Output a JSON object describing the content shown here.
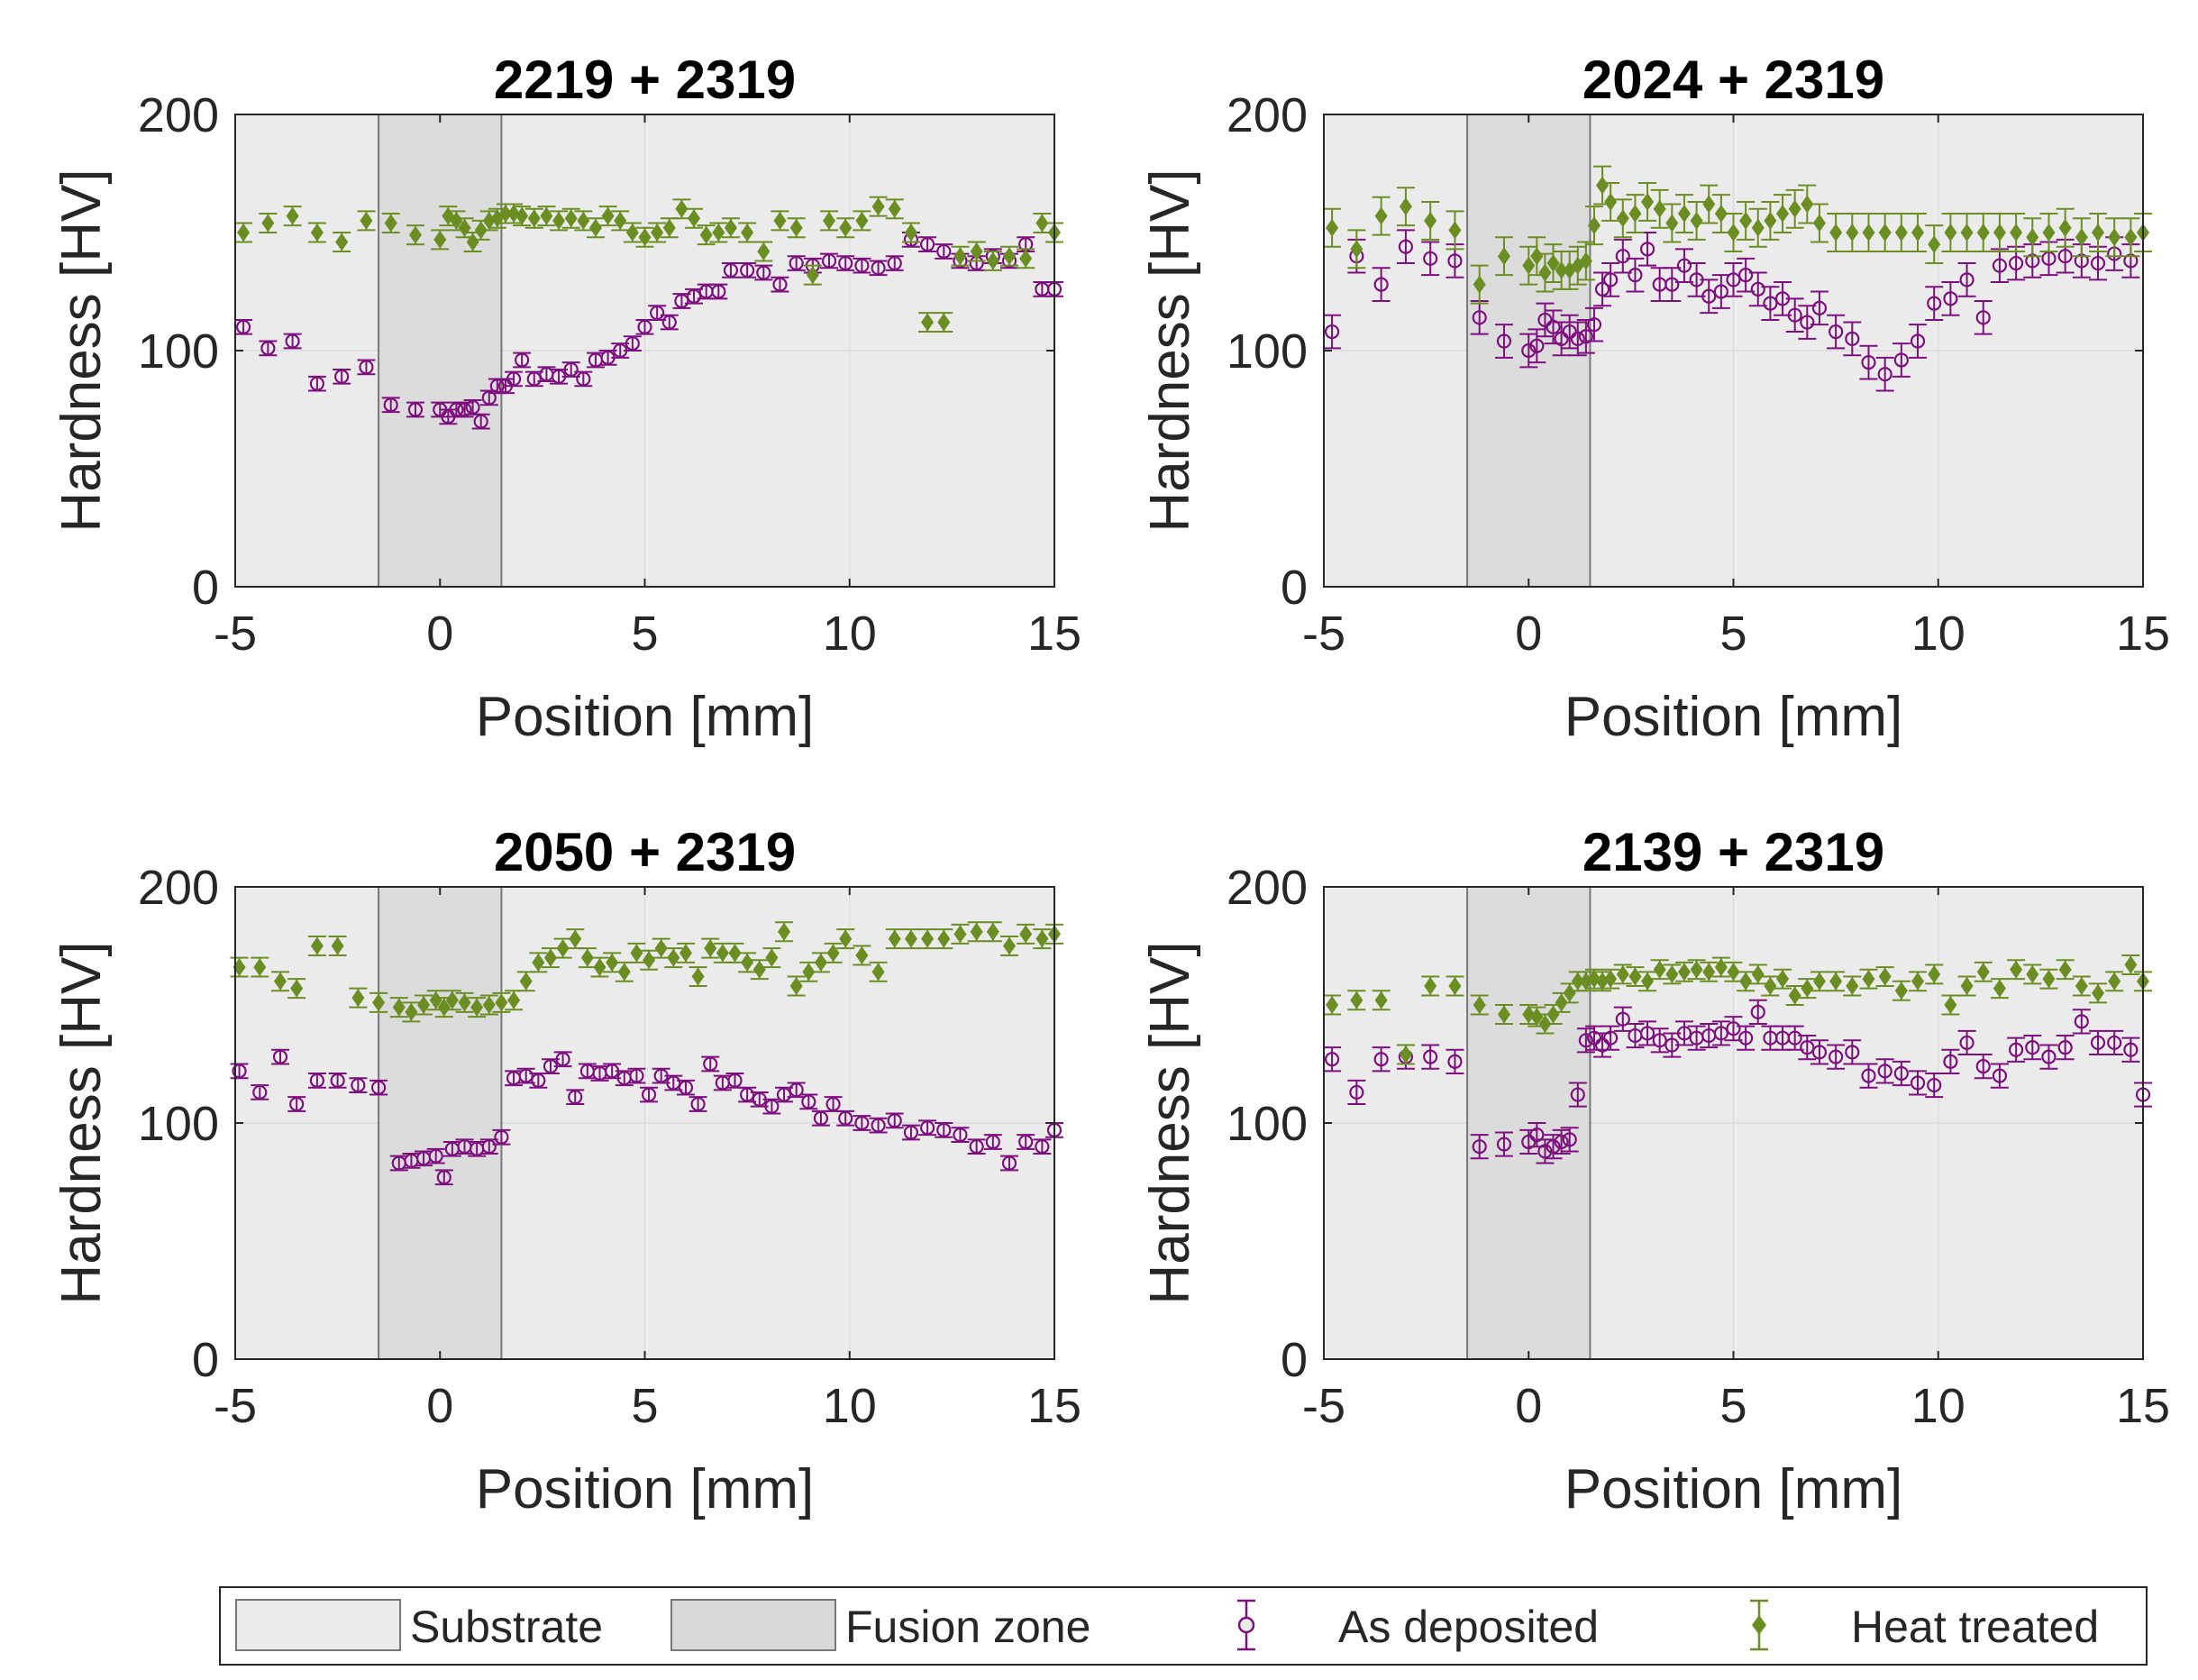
{
  "colors": {
    "substrate": "#ebebeb",
    "fusion_zone": "#d9d9d9",
    "as_deposited": "#7e0f7e",
    "heat_treated": "#6b8e23",
    "grid": "#dcdcdc",
    "axis": "#262626"
  },
  "chart_data": [
    {
      "type": "scatter",
      "title": "2219 + 2319",
      "xlabel": "Position [mm]",
      "ylabel": "Hardness [HV]",
      "xlim": [
        -5,
        15
      ],
      "ylim": [
        0,
        200
      ],
      "xticks": [
        "-5",
        "0",
        "5",
        "10",
        "15"
      ],
      "yticks": [
        "0",
        "100",
        "200"
      ],
      "grid": true,
      "fusion_zone": [
        -1.5,
        1.5
      ],
      "series": [
        {
          "name": "As deposited",
          "marker": "open-circle",
          "err": 3,
          "x": [
            -4.8,
            -4.2,
            -3.6,
            -3.0,
            -2.4,
            -1.8,
            -1.2,
            -0.6,
            0.0,
            0.2,
            0.4,
            0.6,
            0.8,
            1.0,
            1.2,
            1.4,
            1.6,
            1.8,
            2.0,
            2.3,
            2.6,
            2.9,
            3.2,
            3.5,
            3.8,
            4.1,
            4.4,
            4.7,
            5.0,
            5.3,
            5.6,
            5.9,
            6.2,
            6.5,
            6.8,
            7.1,
            7.5,
            7.9,
            8.3,
            8.7,
            9.1,
            9.5,
            9.9,
            10.3,
            10.7,
            11.1,
            11.5,
            11.9,
            12.3,
            12.7,
            13.1,
            13.5,
            13.9,
            14.3,
            14.7,
            15.0
          ],
          "y": [
            110,
            101,
            104,
            86,
            89,
            93,
            77,
            75,
            75,
            72,
            75,
            75,
            76,
            70,
            80,
            85,
            85,
            88,
            96,
            88,
            90,
            89,
            92,
            88,
            96,
            97,
            100,
            103,
            110,
            116,
            112,
            121,
            123,
            125,
            125,
            134,
            134,
            133,
            128,
            137,
            136,
            138,
            137,
            136,
            135,
            137,
            147,
            145,
            142,
            138,
            137,
            140,
            138,
            145,
            126,
            126
          ]
        },
        {
          "name": "Heat treated",
          "marker": "filled-diamond",
          "err": 4,
          "x": [
            -4.8,
            -4.2,
            -3.6,
            -3.0,
            -2.4,
            -1.8,
            -1.2,
            -0.6,
            0.0,
            0.2,
            0.4,
            0.6,
            0.8,
            1.0,
            1.2,
            1.4,
            1.6,
            1.8,
            2.0,
            2.3,
            2.6,
            2.9,
            3.2,
            3.5,
            3.8,
            4.1,
            4.4,
            4.7,
            5.0,
            5.3,
            5.6,
            5.9,
            6.2,
            6.5,
            6.8,
            7.1,
            7.5,
            7.9,
            8.3,
            8.7,
            9.1,
            9.5,
            9.9,
            10.3,
            10.7,
            11.1,
            11.5,
            11.9,
            12.3,
            12.7,
            13.1,
            13.5,
            13.9,
            14.3,
            14.7,
            15.0
          ],
          "y": [
            150,
            154,
            157,
            150,
            146,
            155,
            154,
            149,
            147,
            157,
            155,
            152,
            146,
            151,
            155,
            156,
            158,
            158,
            157,
            156,
            157,
            155,
            156,
            155,
            152,
            157,
            155,
            150,
            148,
            150,
            152,
            160,
            156,
            149,
            150,
            152,
            150,
            142,
            155,
            152,
            132,
            155,
            152,
            155,
            161,
            160,
            150,
            112,
            112,
            140,
            142,
            138,
            140,
            139,
            154,
            150
          ]
        }
      ]
    },
    {
      "type": "scatter",
      "title": "2024 + 2319",
      "xlabel": "Position [mm]",
      "ylabel": "Hardness [HV]",
      "xlim": [
        -5,
        15
      ],
      "ylim": [
        0,
        200
      ],
      "xticks": [
        "-5",
        "0",
        "5",
        "10",
        "15"
      ],
      "yticks": [
        "0",
        "100",
        "200"
      ],
      "grid": true,
      "fusion_zone": [
        -1.5,
        1.5
      ],
      "series": [
        {
          "name": "As deposited",
          "marker": "open-circle",
          "err": 7,
          "x": [
            -4.8,
            -4.2,
            -3.6,
            -3.0,
            -2.4,
            -1.8,
            -1.2,
            -0.6,
            0.0,
            0.2,
            0.4,
            0.6,
            0.8,
            1.0,
            1.2,
            1.4,
            1.6,
            1.8,
            2.0,
            2.3,
            2.6,
            2.9,
            3.2,
            3.5,
            3.8,
            4.1,
            4.4,
            4.7,
            5.0,
            5.3,
            5.6,
            5.9,
            6.2,
            6.5,
            6.8,
            7.1,
            7.5,
            7.9,
            8.3,
            8.7,
            9.1,
            9.5,
            9.9,
            10.3,
            10.7,
            11.1,
            11.5,
            11.9,
            12.3,
            12.7,
            13.1,
            13.5,
            13.9,
            14.3,
            14.7
          ],
          "y": [
            108,
            140,
            128,
            144,
            139,
            138,
            114,
            104,
            100,
            102,
            113,
            110,
            105,
            108,
            105,
            106,
            111,
            126,
            130,
            140,
            132,
            143,
            128,
            128,
            136,
            130,
            123,
            125,
            130,
            132,
            126,
            120,
            122,
            115,
            112,
            118,
            108,
            105,
            95,
            90,
            96,
            104,
            120,
            122,
            130,
            114,
            136,
            137,
            138,
            139,
            140,
            138,
            137,
            141,
            138
          ]
        },
        {
          "name": "Heat treated",
          "marker": "filled-diamond",
          "err": 8,
          "x": [
            -4.8,
            -4.2,
            -3.6,
            -3.0,
            -2.4,
            -1.8,
            -1.2,
            -0.6,
            0.0,
            0.2,
            0.4,
            0.6,
            0.8,
            1.0,
            1.2,
            1.4,
            1.6,
            1.8,
            2.0,
            2.3,
            2.6,
            2.9,
            3.2,
            3.5,
            3.8,
            4.1,
            4.4,
            4.7,
            5.0,
            5.3,
            5.6,
            5.9,
            6.2,
            6.5,
            6.8,
            7.1,
            7.5,
            7.9,
            8.3,
            8.7,
            9.1,
            9.5,
            9.9,
            10.3,
            10.7,
            11.1,
            11.5,
            11.9,
            12.3,
            12.7,
            13.1,
            13.5,
            13.9,
            14.3,
            14.7,
            15.0
          ],
          "y": [
            152,
            143,
            157,
            161,
            155,
            151,
            128,
            140,
            136,
            140,
            133,
            137,
            134,
            134,
            136,
            138,
            153,
            170,
            163,
            156,
            158,
            163,
            160,
            154,
            158,
            155,
            162,
            158,
            150,
            155,
            152,
            155,
            158,
            160,
            162,
            154,
            150,
            150,
            150,
            150,
            150,
            150,
            145,
            150,
            150,
            150,
            150,
            150,
            148,
            150,
            152,
            148,
            150,
            148,
            148,
            150
          ]
        }
      ]
    },
    {
      "type": "scatter",
      "title": "2050 + 2319",
      "xlabel": "Position [mm]",
      "ylabel": "Hardness [HV]",
      "xlim": [
        -5,
        15
      ],
      "ylim": [
        0,
        200
      ],
      "xticks": [
        "-5",
        "0",
        "5",
        "10",
        "15"
      ],
      "yticks": [
        "0",
        "100",
        "200"
      ],
      "grid": true,
      "fusion_zone": [
        -1.5,
        1.5
      ],
      "series": [
        {
          "name": "As deposited",
          "marker": "open-circle",
          "err": 3,
          "x": [
            -4.9,
            -4.4,
            -3.9,
            -3.5,
            -3.0,
            -2.5,
            -2.0,
            -1.5,
            -1.0,
            -0.7,
            -0.4,
            -0.1,
            0.1,
            0.3,
            0.6,
            0.9,
            1.2,
            1.5,
            1.8,
            2.1,
            2.4,
            2.7,
            3.0,
            3.3,
            3.6,
            3.9,
            4.2,
            4.5,
            4.8,
            5.1,
            5.4,
            5.7,
            6.0,
            6.3,
            6.6,
            6.9,
            7.2,
            7.5,
            7.8,
            8.1,
            8.4,
            8.7,
            9.0,
            9.3,
            9.6,
            9.9,
            10.3,
            10.7,
            11.1,
            11.5,
            11.9,
            12.3,
            12.7,
            13.1,
            13.5,
            13.9,
            14.3,
            14.7,
            15.0
          ],
          "y": [
            122,
            113,
            128,
            108,
            118,
            118,
            116,
            115,
            83,
            84,
            85,
            86,
            77,
            89,
            90,
            89,
            90,
            94,
            119,
            120,
            118,
            124,
            127,
            111,
            122,
            121,
            122,
            119,
            120,
            112,
            120,
            117,
            115,
            108,
            125,
            117,
            118,
            112,
            110,
            107,
            112,
            114,
            109,
            102,
            108,
            102,
            100,
            99,
            101,
            96,
            98,
            97,
            95,
            90,
            92,
            83,
            92,
            90,
            97
          ]
        },
        {
          "name": "Heat treated",
          "marker": "filled-diamond",
          "err": 4,
          "x": [
            -4.9,
            -4.4,
            -3.9,
            -3.5,
            -3.0,
            -2.5,
            -2.0,
            -1.5,
            -1.0,
            -0.7,
            -0.4,
            -0.1,
            0.1,
            0.3,
            0.6,
            0.9,
            1.2,
            1.5,
            1.8,
            2.1,
            2.4,
            2.7,
            3.0,
            3.3,
            3.6,
            3.9,
            4.2,
            4.5,
            4.8,
            5.1,
            5.4,
            5.7,
            6.0,
            6.3,
            6.6,
            6.9,
            7.2,
            7.5,
            7.8,
            8.1,
            8.4,
            8.7,
            9.0,
            9.3,
            9.6,
            9.9,
            10.3,
            10.7,
            11.1,
            11.5,
            11.9,
            12.3,
            12.7,
            13.1,
            13.5,
            13.9,
            14.3,
            14.7,
            15.0
          ],
          "y": [
            166,
            166,
            160,
            157,
            175,
            175,
            153,
            151,
            149,
            147,
            150,
            152,
            149,
            152,
            151,
            149,
            150,
            151,
            152,
            160,
            168,
            170,
            174,
            178,
            170,
            166,
            168,
            164,
            172,
            169,
            174,
            170,
            172,
            162,
            174,
            172,
            172,
            168,
            165,
            170,
            181,
            158,
            164,
            168,
            172,
            178,
            171,
            164,
            178,
            178,
            178,
            178,
            180,
            181,
            181,
            175,
            180,
            178,
            180
          ]
        }
      ]
    },
    {
      "type": "scatter",
      "title": "2139 + 2319",
      "xlabel": "Position [mm]",
      "ylabel": "Hardness [HV]",
      "xlim": [
        -5,
        15
      ],
      "ylim": [
        0,
        200
      ],
      "xticks": [
        "-5",
        "0",
        "5",
        "10",
        "15"
      ],
      "yticks": [
        "0",
        "100",
        "200"
      ],
      "grid": true,
      "fusion_zone": [
        -1.5,
        1.5
      ],
      "series": [
        {
          "name": "As deposited",
          "marker": "open-circle",
          "err": 5,
          "x": [
            -4.8,
            -4.2,
            -3.6,
            -3.0,
            -2.4,
            -1.8,
            -1.2,
            -0.6,
            0.0,
            0.2,
            0.4,
            0.6,
            0.8,
            1.0,
            1.2,
            1.4,
            1.6,
            1.8,
            2.0,
            2.3,
            2.6,
            2.9,
            3.2,
            3.5,
            3.8,
            4.1,
            4.4,
            4.7,
            5.0,
            5.3,
            5.6,
            5.9,
            6.2,
            6.5,
            6.8,
            7.1,
            7.5,
            7.9,
            8.3,
            8.7,
            9.1,
            9.5,
            9.9,
            10.3,
            10.7,
            11.1,
            11.5,
            11.9,
            12.3,
            12.7,
            13.1,
            13.5,
            13.9,
            14.3,
            14.7,
            15.0
          ],
          "y": [
            127,
            113,
            127,
            128,
            128,
            126,
            90,
            91,
            92,
            95,
            88,
            90,
            92,
            93,
            112,
            135,
            136,
            133,
            136,
            144,
            137,
            138,
            135,
            133,
            138,
            136,
            137,
            138,
            140,
            136,
            147,
            136,
            136,
            136,
            132,
            130,
            128,
            130,
            120,
            122,
            121,
            117,
            116,
            126,
            134,
            124,
            120,
            131,
            132,
            128,
            132,
            143,
            134,
            134,
            131,
            112
          ]
        },
        {
          "name": "Heat treated",
          "marker": "filled-diamond",
          "err": 4,
          "x": [
            -4.8,
            -4.2,
            -3.6,
            -3.0,
            -2.4,
            -1.8,
            -1.2,
            -0.6,
            0.0,
            0.2,
            0.4,
            0.6,
            0.8,
            1.0,
            1.2,
            1.4,
            1.6,
            1.8,
            2.0,
            2.3,
            2.6,
            2.9,
            3.2,
            3.5,
            3.8,
            4.1,
            4.4,
            4.7,
            5.0,
            5.3,
            5.6,
            5.9,
            6.2,
            6.5,
            6.8,
            7.1,
            7.5,
            7.9,
            8.3,
            8.7,
            9.1,
            9.5,
            9.9,
            10.3,
            10.7,
            11.1,
            11.5,
            11.9,
            12.3,
            12.7,
            13.1,
            13.5,
            13.9,
            14.3,
            14.7,
            15.0
          ],
          "y": [
            150,
            152,
            152,
            129,
            158,
            158,
            150,
            146,
            146,
            145,
            142,
            146,
            151,
            155,
            160,
            160,
            161,
            160,
            161,
            163,
            162,
            160,
            165,
            163,
            164,
            165,
            164,
            166,
            164,
            160,
            163,
            158,
            161,
            154,
            157,
            160,
            160,
            158,
            161,
            162,
            156,
            160,
            163,
            150,
            158,
            164,
            157,
            165,
            163,
            161,
            165,
            158,
            155,
            160,
            167,
            160
          ]
        }
      ]
    }
  ],
  "legend": {
    "items": [
      {
        "label": "Substrate",
        "kind": "patch-substrate"
      },
      {
        "label": "Fusion zone",
        "kind": "patch-fusion"
      },
      {
        "label": "As deposited",
        "kind": "marker-as-deposited"
      },
      {
        "label": "Heat treated",
        "kind": "marker-heat-treated"
      }
    ]
  }
}
